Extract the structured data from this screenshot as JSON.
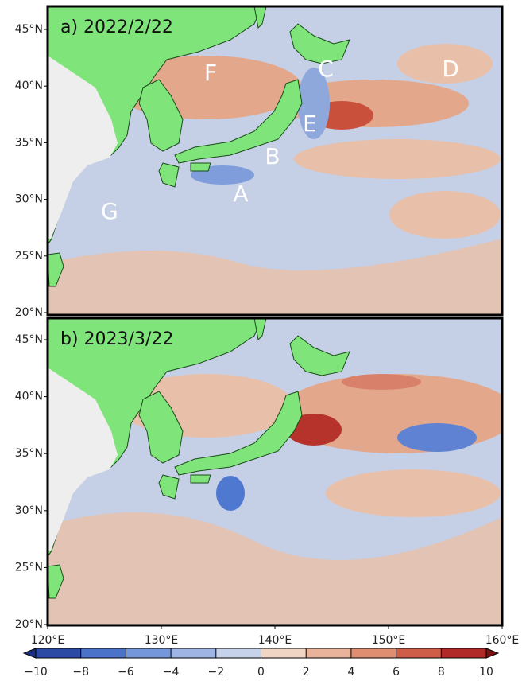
{
  "panels": [
    {
      "label": "a) 2022/2/22",
      "annotations": [
        "A",
        "B",
        "C",
        "D",
        "E",
        "F",
        "G"
      ]
    },
    {
      "label": "b) 2023/3/22"
    }
  ],
  "lat_labels": [
    "45°N",
    "40°N",
    "35°N",
    "30°N",
    "25°N",
    "20°N"
  ],
  "lon_labels": [
    "120°E",
    "130°E",
    "140°E",
    "150°E",
    "160°E"
  ],
  "colorbar_ticks": [
    "−10",
    "−8",
    "−6",
    "−4",
    "−2",
    "0",
    "2",
    "4",
    "6",
    "8",
    "10"
  ]
}
